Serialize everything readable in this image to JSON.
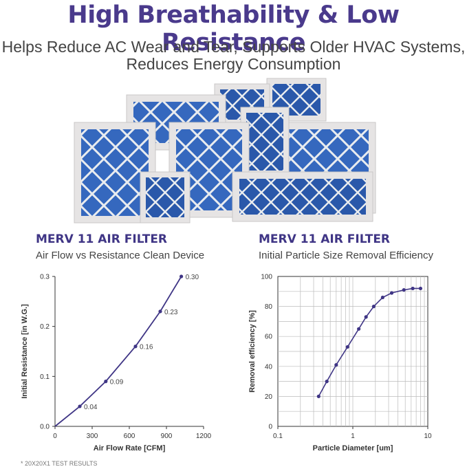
{
  "header": {
    "title": "High Breathability & Low Resistance",
    "subtitle_line1": "Helps Reduce AC Wear and Tear, Supports Older HVAC Systems,",
    "subtitle_line2": "Reduces Energy Consumption"
  },
  "left_panel": {
    "title": "MERV 11 AIR FILTER",
    "subtitle": "Air Flow vs Resistance Clean Device"
  },
  "right_panel": {
    "title": "MERV 11 AIR FILTER",
    "subtitle": "Initial Particle Size Removal Efficiency"
  },
  "footnote": "* 20X20X1 TEST RESULTS",
  "colors": {
    "title": "#4a3a8c",
    "curve": "#3f3585",
    "filter_blue": "#2f5fb4",
    "frame": "#e6e4e4"
  },
  "chart_data": [
    {
      "type": "line",
      "xlabel": "Air Flow Rate [CFM]",
      "ylabel": "Initial Resistance [in W.G.]",
      "xlim": [
        0,
        1200
      ],
      "ylim": [
        0,
        0.3
      ],
      "x_ticks": [
        "0",
        "300",
        "600",
        "900",
        "1200"
      ],
      "y_ticks": [
        "0.0",
        "0.1",
        "0.2",
        "0.3"
      ],
      "grid": false,
      "x": [
        200,
        410,
        650,
        850,
        1020
      ],
      "values": [
        0.04,
        0.09,
        0.16,
        0.23,
        0.3
      ],
      "data_labels": [
        "0.04",
        "0.09",
        "0.16",
        "0.23",
        "0.30"
      ]
    },
    {
      "type": "line",
      "xlabel": "Particle Diameter [um]",
      "ylabel": "Removal efficiency [%]",
      "xscale": "log",
      "xlim": [
        0.1,
        10
      ],
      "ylim": [
        0,
        100
      ],
      "x_ticks": [
        "0.1",
        "1",
        "10"
      ],
      "y_ticks": [
        "0",
        "20",
        "40",
        "60",
        "80",
        "100"
      ],
      "grid": true,
      "x": [
        0.35,
        0.45,
        0.6,
        0.85,
        1.2,
        1.5,
        1.9,
        2.5,
        3.3,
        4.8,
        6.3,
        8.0
      ],
      "values": [
        20,
        30,
        41,
        53,
        65,
        73,
        80,
        86,
        89,
        91,
        92,
        92
      ]
    }
  ]
}
